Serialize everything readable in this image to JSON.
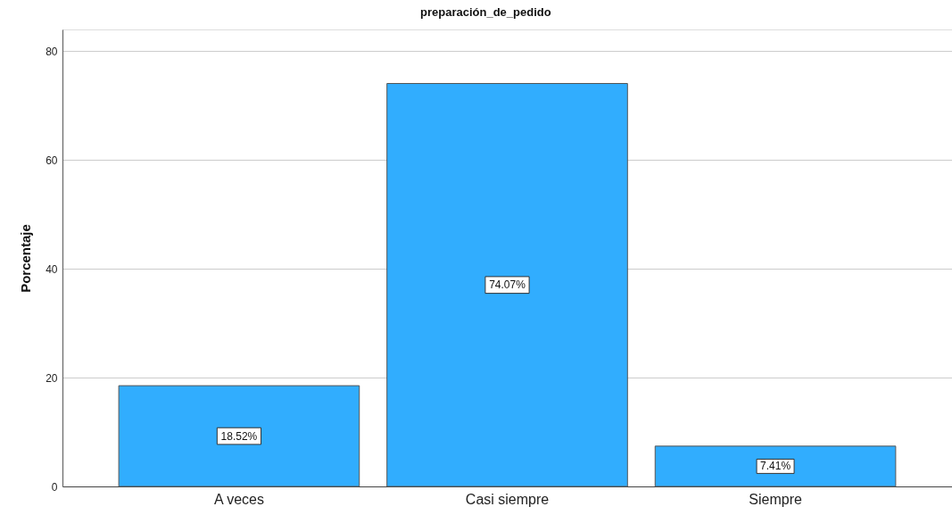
{
  "chart_data": {
    "type": "bar",
    "title": "preparación_de_pedido",
    "ylabel": "Porcentaje",
    "categories": [
      "A veces",
      "Casi siempre",
      "Siempre"
    ],
    "values": [
      18.52,
      74.07,
      7.41
    ],
    "value_labels": [
      "18.52%",
      "74.07%",
      "7.41%"
    ],
    "color": "#31adfe",
    "ylim": [
      0,
      84
    ],
    "yticks": [
      0,
      20,
      40,
      60,
      80
    ],
    "grid": "y"
  }
}
